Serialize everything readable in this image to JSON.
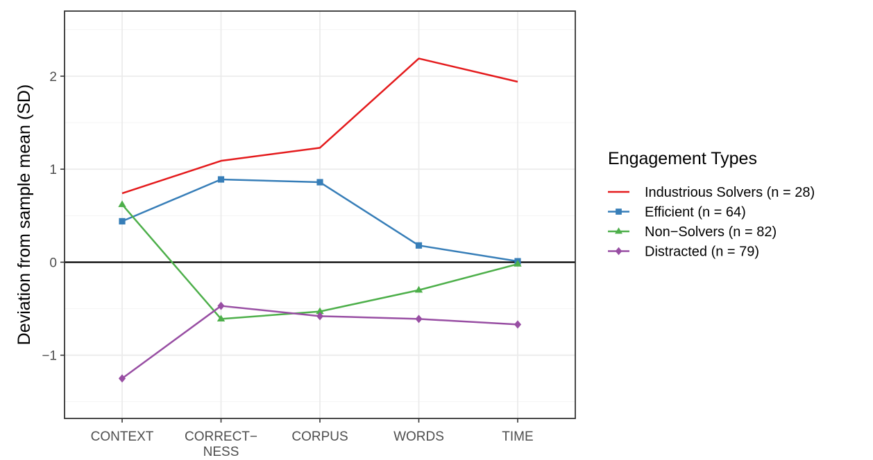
{
  "chart_data": {
    "type": "line",
    "categories": [
      "CONTEXT",
      "CORRECT−\nNESS",
      "CORPUS",
      "WORDS",
      "TIME"
    ],
    "ylabel": "Deviation from sample mean (SD)",
    "xlabel": "",
    "ylim": [
      -1.68,
      2.7
    ],
    "yticks": [
      -1,
      0,
      1,
      2
    ],
    "ytick_labels": [
      "−1",
      "0",
      "1",
      "2"
    ],
    "grid": true,
    "reference_line_y": 0,
    "legend_position": "right",
    "legend_title": "Engagement Types",
    "series": [
      {
        "name": "Industrious Solvers (n = 28)",
        "color": "#e41a1c",
        "marker": "none",
        "values": [
          0.74,
          1.09,
          1.23,
          2.19,
          1.94
        ]
      },
      {
        "name": "Efficient (n = 64)",
        "color": "#377eb8",
        "marker": "square",
        "values": [
          0.44,
          0.89,
          0.86,
          0.18,
          0.01
        ]
      },
      {
        "name": "Non−Solvers (n = 82)",
        "color": "#4daf4a",
        "marker": "triangle",
        "values": [
          0.62,
          -0.61,
          -0.53,
          -0.3,
          -0.02
        ]
      },
      {
        "name": "Distracted (n = 79)",
        "color": "#984ea3",
        "marker": "diamond",
        "values": [
          -1.25,
          -0.47,
          -0.58,
          -0.61,
          -0.67
        ]
      }
    ]
  }
}
